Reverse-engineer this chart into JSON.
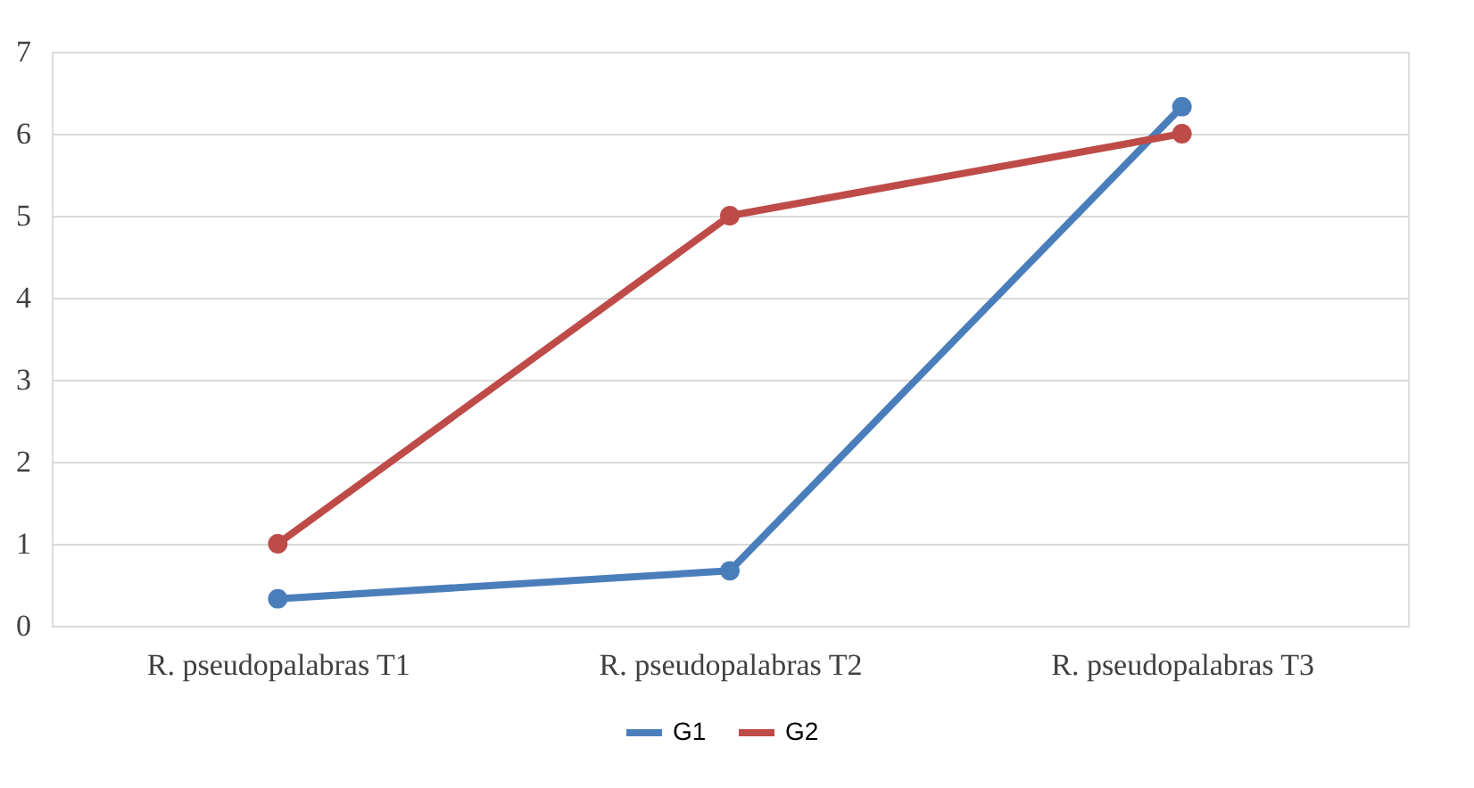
{
  "chart_data": {
    "type": "line",
    "categories": [
      "R. pseudopalabras T1",
      "R. pseudopalabras T2",
      "R. pseudopalabras T3"
    ],
    "series": [
      {
        "name": "G1",
        "color": "#4a7ebb",
        "values": [
          0.33,
          0.67,
          6.33
        ]
      },
      {
        "name": "G2",
        "color": "#be4b48",
        "values": [
          1,
          5,
          6
        ]
      }
    ],
    "ylim": [
      0,
      7
    ],
    "yticks": [
      0,
      1,
      2,
      3,
      4,
      5,
      6,
      7
    ],
    "grid": "y",
    "legend": "bottom",
    "marker": "circle",
    "line_style": "solid"
  }
}
